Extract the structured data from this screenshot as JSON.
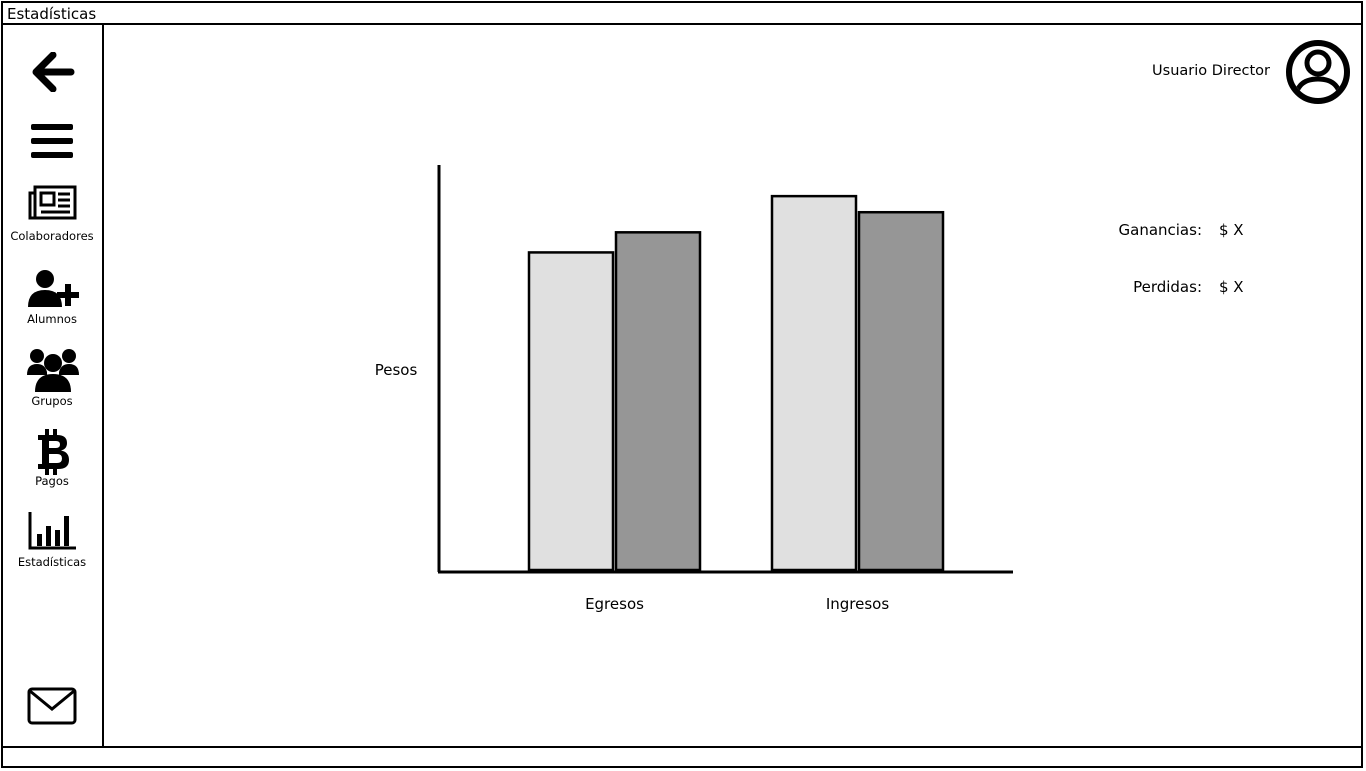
{
  "window": {
    "title": "Estadísticas"
  },
  "sidebar": {
    "items": [
      {
        "id": "back",
        "icon": "arrow-left-icon",
        "label": ""
      },
      {
        "id": "menu",
        "icon": "hamburger-menu-icon",
        "label": ""
      },
      {
        "id": "colaboradores",
        "icon": "newspaper-icon",
        "label": "Colaboradores"
      },
      {
        "id": "alumnos",
        "icon": "user-plus-icon",
        "label": "Alumnos"
      },
      {
        "id": "grupos",
        "icon": "users-group-icon",
        "label": "Grupos"
      },
      {
        "id": "pagos",
        "icon": "bitcoin-icon",
        "label": "Pagos"
      },
      {
        "id": "estadisticas",
        "icon": "bar-chart-icon",
        "label": "Estadísticas"
      },
      {
        "id": "mail",
        "icon": "envelope-icon",
        "label": ""
      }
    ]
  },
  "header": {
    "user_name": "Usuario Director",
    "avatar_icon": "user-avatar-icon"
  },
  "summary": {
    "ganancias_label": "Ganancias:",
    "ganancias_value": "$ X",
    "perdidas_label": "Perdidas:",
    "perdidas_value": "$ X"
  },
  "chart_data": {
    "type": "bar",
    "ylabel": "Pesos",
    "xlabel": "",
    "categories": [
      "Egresos",
      "Ingresos"
    ],
    "series": [
      {
        "color": "#e0e0e0",
        "values": [
          79,
          93
        ]
      },
      {
        "color": "#969696",
        "values": [
          84,
          89
        ]
      }
    ],
    "ylim": [
      0,
      100
    ],
    "grid": false
  }
}
